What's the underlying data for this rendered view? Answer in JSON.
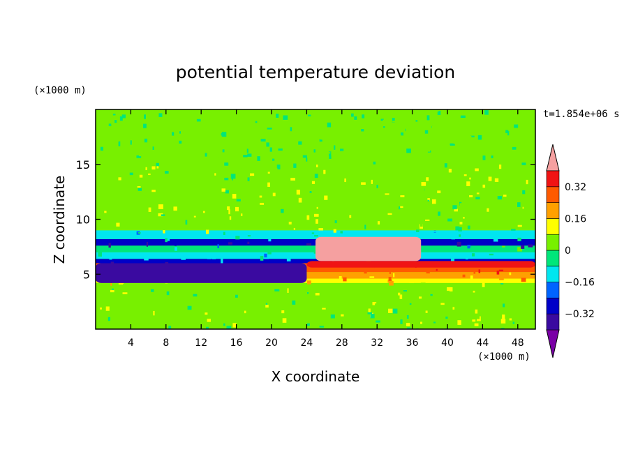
{
  "chart_data": {
    "type": "heatmap",
    "title": "potential temperature deviation",
    "xlabel": "X coordinate",
    "ylabel": "Z coordinate",
    "x_unit": "(×1000 m)",
    "y_unit": "(×1000 m)",
    "time_label": "t=1.854e+06 s",
    "xlim": [
      0,
      50
    ],
    "ylim": [
      0,
      20
    ],
    "x_ticks": [
      4,
      8,
      12,
      16,
      20,
      24,
      28,
      32,
      36,
      40,
      44,
      48
    ],
    "y_ticks": [
      5,
      10,
      15
    ],
    "colorbar": {
      "levels": [
        -0.4,
        -0.32,
        -0.24,
        -0.16,
        -0.08,
        0,
        0.08,
        0.16,
        0.24,
        0.32,
        0.4
      ],
      "tick_labels": [
        "0.32",
        "0.16",
        "0",
        "−0.16",
        "−0.32"
      ],
      "tick_values": [
        0.32,
        0.16,
        0,
        -0.16,
        -0.32
      ],
      "colors": [
        "#7a00a6",
        "#3a0aa0",
        "#0000c8",
        "#0064ff",
        "#00e6f0",
        "#00e67a",
        "#78f000",
        "#ffff00",
        "#ffa000",
        "#ff5a00",
        "#f01414",
        "#f5a0a0"
      ]
    },
    "bands": [
      {
        "z": [
          0,
          0.5
        ],
        "value": 0.0
      },
      {
        "z": [
          0.5,
          4.2
        ],
        "value": 0.05
      },
      {
        "z": [
          4.2,
          4.6
        ],
        "value": 0.12
      },
      {
        "z": [
          4.6,
          5.2
        ],
        "value": 0.2
      },
      {
        "z": [
          5.2,
          6.0
        ],
        "value": 0.3
      },
      {
        "z": [
          6.0,
          6.4
        ],
        "value": -0.3
      },
      {
        "z": [
          6.4,
          7.0
        ],
        "value": -0.1
      },
      {
        "z": [
          7.0,
          7.6
        ],
        "value": -0.05
      },
      {
        "z": [
          7.6,
          8.2
        ],
        "value": -0.3
      },
      {
        "z": [
          8.2,
          9.0
        ],
        "value": -0.1
      },
      {
        "z": [
          9.0,
          13.0
        ],
        "value": 0.05
      },
      {
        "z": [
          13.0,
          15.0
        ],
        "value": 0.06
      },
      {
        "z": [
          15.0,
          20.0
        ],
        "value": 0.0
      }
    ],
    "features": [
      {
        "x": [
          25,
          37
        ],
        "z": [
          6.2,
          8.4
        ],
        "value": 0.45
      },
      {
        "x": [
          24,
          50
        ],
        "z": [
          5.6,
          6.2
        ],
        "value": 0.34
      },
      {
        "x": [
          0,
          24
        ],
        "z": [
          4.2,
          6.0
        ],
        "value": -0.38
      }
    ]
  }
}
